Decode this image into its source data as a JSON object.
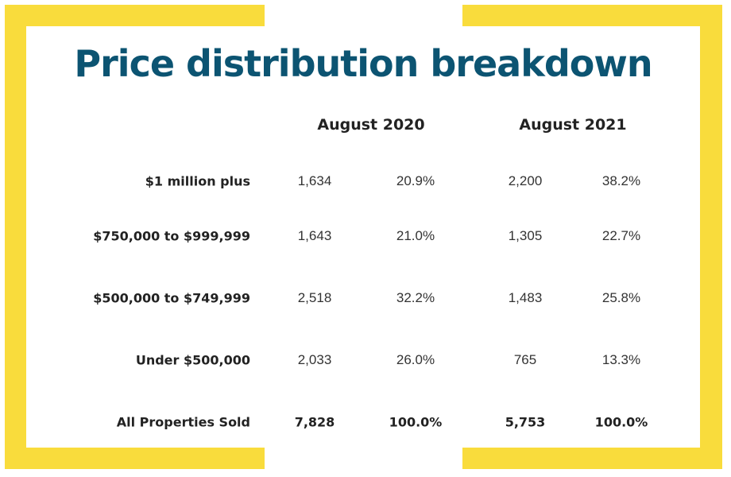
{
  "colors": {
    "accent": "#f9dc3c",
    "title": "#0c5472"
  },
  "chart_data": {
    "type": "table",
    "title": "Price distribution breakdown",
    "periods": [
      "August 2020",
      "August 2021"
    ],
    "rows": [
      {
        "label": "$1 million plus",
        "values": [
          "1,634",
          "20.9%",
          "2,200",
          "38.2%"
        ]
      },
      {
        "label": "$750,000 to $999,999",
        "values": [
          "1,643",
          "21.0%",
          "1,305",
          "22.7%"
        ]
      },
      {
        "label": "$500,000 to $749,999",
        "values": [
          "2,518",
          "32.2%",
          "1,483",
          "25.8%"
        ]
      },
      {
        "label": "Under $500,000",
        "values": [
          "2,033",
          "26.0%",
          "765",
          "13.3%"
        ]
      },
      {
        "label": "All Properties Sold",
        "values": [
          "7,828",
          "100.0%",
          "5,753",
          "100.0%"
        ],
        "total": true
      }
    ]
  }
}
